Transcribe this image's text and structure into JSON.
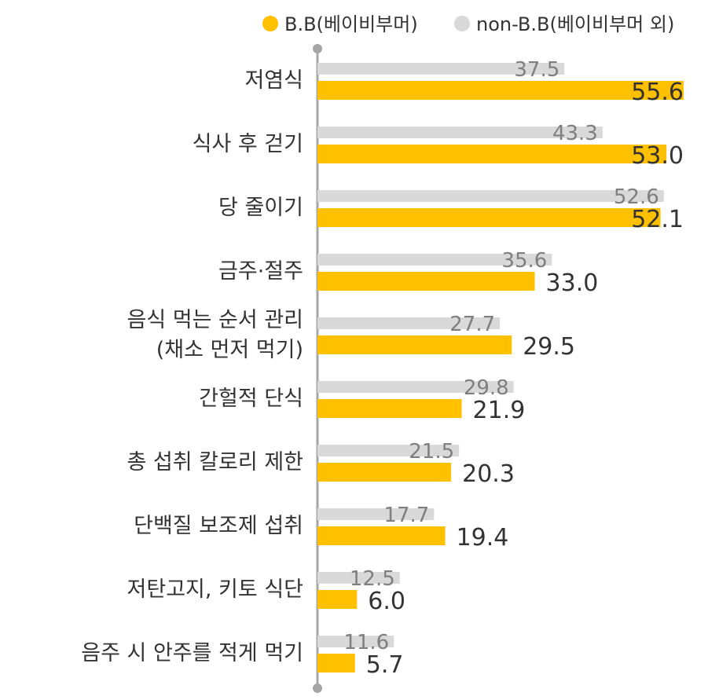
{
  "chart_data": {
    "type": "bar",
    "orientation": "horizontal",
    "categories": [
      [
        "저염식"
      ],
      [
        "식사 후 걷기"
      ],
      [
        "당 줄이기"
      ],
      [
        "금주·절주"
      ],
      [
        "음식 먹는 순서 관리",
        "(채소 먼저 먹기)"
      ],
      [
        "간헐적 단식"
      ],
      [
        "총 섭취 칼로리 제한"
      ],
      [
        "단백질 보조제 섭취"
      ],
      [
        "저탄고지, 키토 식단"
      ],
      [
        "음주 시 안주를 적게 먹기"
      ]
    ],
    "series": [
      {
        "name": "non-B.B(베이비부머 외)",
        "color": "#d9d9d9",
        "values": [
          37.5,
          43.3,
          52.6,
          35.6,
          27.7,
          29.8,
          21.5,
          17.7,
          12.5,
          11.6
        ],
        "labels": [
          "37.5",
          "43.3",
          "52.6",
          "35.6",
          "27.7",
          "29.8",
          "21.5",
          "17.7",
          "12.5",
          "11.6"
        ]
      },
      {
        "name": "B.B(베이비부머)",
        "color": "#ffc000",
        "values": [
          55.6,
          53.0,
          52.1,
          33.0,
          29.5,
          21.9,
          20.3,
          19.4,
          6.0,
          5.7
        ],
        "labels": [
          "55.6",
          "53.0",
          "52.1",
          "33.0",
          "29.5",
          "21.9",
          "20.3",
          "19.4",
          "6.0",
          "5.7"
        ]
      }
    ],
    "legend": [
      {
        "label": "B.B(베이비부머)",
        "color": "#ffc000"
      },
      {
        "label": "non-B.B(베이비부머 외)",
        "color": "#d9d9d9"
      }
    ],
    "legend_position": "top-right",
    "axis_color": "#a6a6a6",
    "grid": false
  }
}
